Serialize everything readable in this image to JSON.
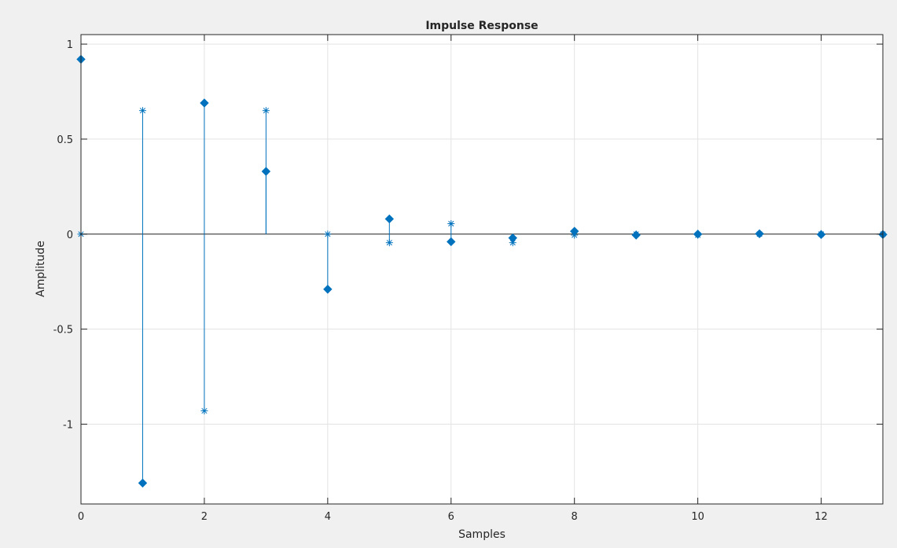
{
  "colors": {
    "figure_background": "#f0f0f0",
    "axes_background": "#ffffff",
    "series": "#0072bd",
    "grid": "#e3e3e3",
    "axis": "#262626"
  },
  "chart_data": {
    "type": "stem",
    "title": "Impulse Response",
    "xlabel": "Samples",
    "ylabel": "Amplitude",
    "xlim": [
      0,
      13
    ],
    "ylim": [
      -1.42,
      1.05
    ],
    "xticks": [
      0,
      2,
      4,
      6,
      8,
      10,
      12
    ],
    "yticks": [
      -1,
      -0.5,
      0,
      0.5,
      1
    ],
    "xtick_labels": [
      "0",
      "2",
      "4",
      "6",
      "8",
      "10",
      "12"
    ],
    "ytick_labels": [
      "-1",
      "-0.5",
      "0",
      "0.5",
      "1"
    ],
    "grid": true,
    "baseline": 0,
    "series": [
      {
        "marker": "diamond",
        "x": [
          0,
          1,
          2,
          3,
          4,
          5,
          6,
          7,
          8,
          9,
          10,
          11,
          12,
          13
        ],
        "values": [
          0.92,
          -1.31,
          0.69,
          0.33,
          -0.29,
          0.08,
          -0.04,
          -0.02,
          0.015,
          -0.005,
          0.0,
          0.002,
          -0.002,
          -0.002
        ]
      },
      {
        "marker": "asterisk",
        "x": [
          0,
          1,
          2,
          3,
          4,
          5,
          6,
          7,
          8,
          9,
          10,
          11,
          12,
          13
        ],
        "values": [
          0.0,
          0.65,
          -0.93,
          0.65,
          0.0,
          -0.045,
          0.055,
          -0.045,
          -0.005,
          0.0,
          -0.005,
          0.0,
          0.0,
          0.0
        ]
      }
    ]
  }
}
